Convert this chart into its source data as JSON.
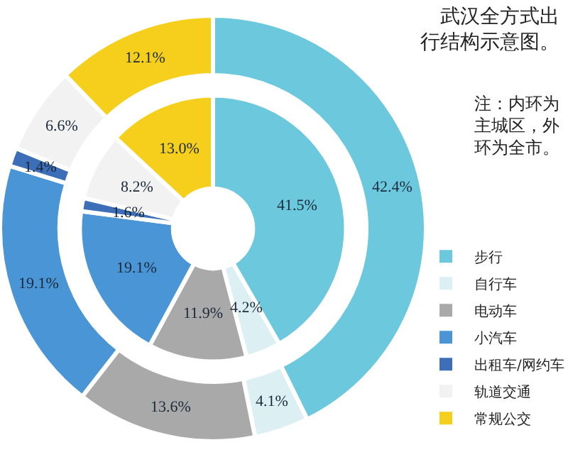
{
  "chart_data": {
    "type": "donut",
    "title": "武汉全方式出行结构示意图。",
    "annotations": [
      "注：内环为主城区，外环为全市。"
    ],
    "categories": [
      "步行",
      "自行车",
      "电动车",
      "小汽车",
      "出租车/网约车",
      "轨道交通",
      "常规公交"
    ],
    "colors": [
      "#6cc9dd",
      "#dcf0f4",
      "#a9a9a9",
      "#4a95d6",
      "#3d6fb8",
      "#f2f2f2",
      "#f6cf1d"
    ],
    "series": [
      {
        "values": [
          41.5,
          4.2,
          11.9,
          19.1,
          1.6,
          8.2,
          13.0
        ],
        "value_labels": [
          "41.5%",
          "4.2%",
          "11.9%",
          "19.1%",
          "1.6%",
          "8.2%",
          "13.0%"
        ]
      },
      {
        "values": [
          42.4,
          4.1,
          13.6,
          19.1,
          1.4,
          6.6,
          12.1
        ],
        "value_labels": [
          "42.4%",
          "4.1%",
          "13.6%",
          "19.1%",
          "1.4%",
          "6.6%",
          "12.1%"
        ]
      }
    ],
    "legend": "bottom right"
  }
}
